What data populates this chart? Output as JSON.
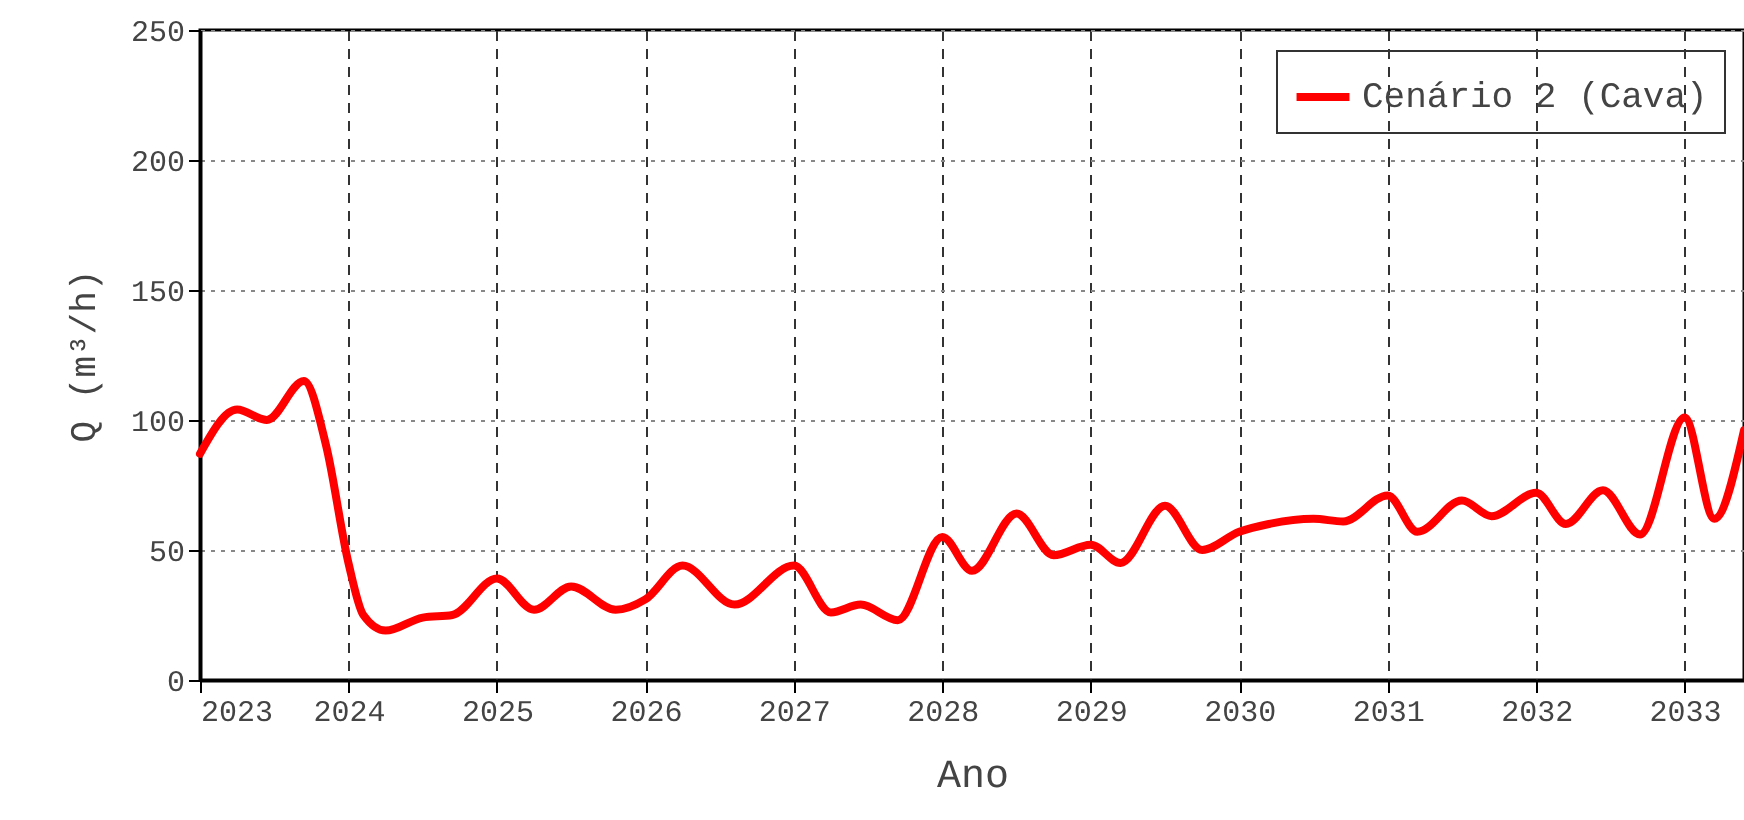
{
  "chart_data": {
    "type": "line",
    "xlabel": "Ano",
    "ylabel": "Q (m³/h)",
    "x": [
      2023.0,
      2023.25,
      2023.45,
      2023.7,
      2023.85,
      2024.0,
      2024.1,
      2024.25,
      2024.5,
      2024.7,
      2025.0,
      2025.25,
      2025.5,
      2025.8,
      2026.0,
      2026.25,
      2026.6,
      2027.0,
      2027.25,
      2027.45,
      2027.7,
      2028.0,
      2028.2,
      2028.5,
      2028.75,
      2029.0,
      2029.2,
      2029.5,
      2029.75,
      2030.0,
      2030.2,
      2030.5,
      2030.7,
      2031.0,
      2031.2,
      2031.5,
      2031.7,
      2032.0,
      2032.2,
      2032.45,
      2032.7,
      2033.0,
      2033.2,
      2033.4
    ],
    "series": [
      {
        "name": "Cenário 2 (Cava)",
        "color": "#ff0000",
        "values": [
          87,
          104,
          100,
          115,
          90,
          45,
          25,
          19,
          24,
          25,
          39,
          27,
          36,
          27,
          31,
          44,
          29,
          44,
          26,
          29,
          23,
          55,
          42,
          64,
          48,
          52,
          45,
          67,
          50,
          57,
          60,
          62,
          61,
          71,
          57,
          69,
          63,
          72,
          60,
          73,
          56,
          101,
          62,
          96
        ]
      }
    ],
    "xlim": [
      2023,
      2033.4
    ],
    "xticks": [
      2023,
      2024,
      2025,
      2026,
      2027,
      2028,
      2029,
      2030,
      2031,
      2032,
      2033
    ],
    "ylim": [
      0,
      250
    ],
    "yticks": [
      0,
      50,
      100,
      150,
      200,
      250
    ],
    "grid": true,
    "legend": "top right",
    "line_style": "solid",
    "marker": "none"
  }
}
